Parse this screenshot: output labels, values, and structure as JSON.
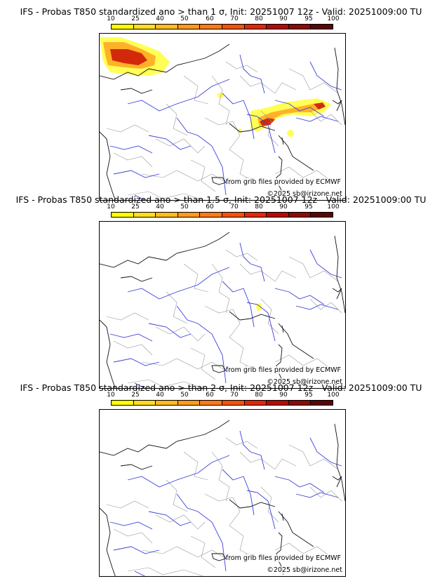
{
  "colors": {
    "classes": [
      "#ffff00",
      "#ffdd22",
      "#ffbb22",
      "#ff9a1e",
      "#ff7a14",
      "#f2520a",
      "#e02808",
      "#b40a08",
      "#8c0a08",
      "#5a0606"
    ],
    "land_border": "#9a9a9a",
    "river": "#3a40d8",
    "coast": "#111111",
    "probability_low": "#ffff44",
    "probability_mid": "#ffaa22",
    "probability_high": "#cc1a08"
  },
  "scale": {
    "labels": [
      "10",
      "25",
      "40",
      "50",
      "60",
      "70",
      "80",
      "90",
      "95",
      "100"
    ]
  },
  "panels": [
    {
      "title": "IFS - Probas T850  standardized ano > than 1 σ, Init: 20251007 12z - Valid: 20251009:00 TU",
      "credit_source": "from grib files provided by ECMWF",
      "credit_copyright": "©2025 sb@irizone.net",
      "has_probability_field": true
    },
    {
      "title": "IFS - Probas T850  standardized ano > than 1.5 σ, Init: 20251007 12z - Valid: 20251009:00 TU",
      "credit_source": "from grib files provided by ECMWF",
      "credit_copyright": "©2025 sb@irizone.net",
      "has_probability_field": true
    },
    {
      "title": "IFS - Probas T850  standardized ano > than 2 σ, Init: 20251007 12z - Valid: 20251009:00 TU",
      "credit_source": "from grib files provided by ECMWF",
      "credit_copyright": "©2025 sb@irizone.net",
      "has_probability_field": false
    }
  ]
}
